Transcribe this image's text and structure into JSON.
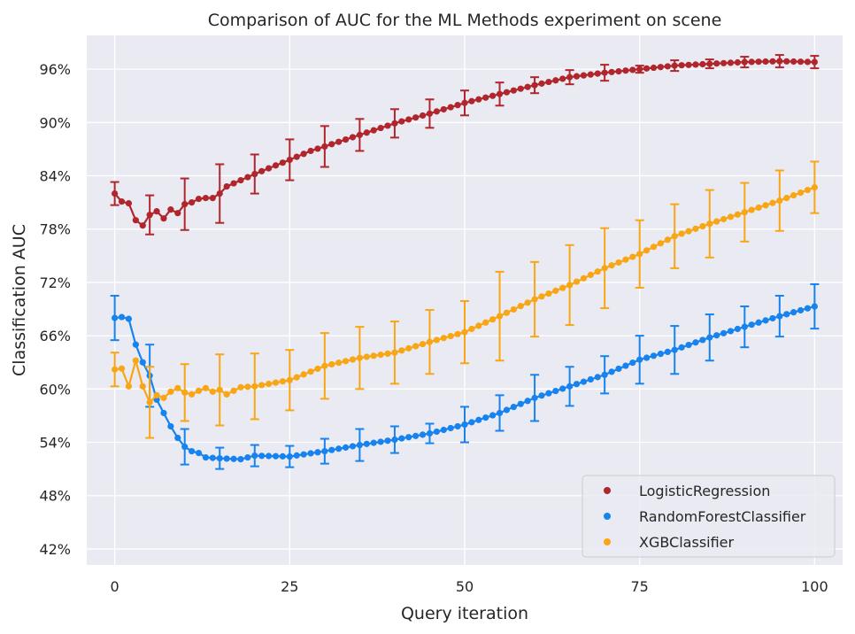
{
  "colors": {
    "background": "#eaeaf2",
    "grid": "#ffffff",
    "LogisticRegression": "#b0262c",
    "RandomForestClassifier": "#1683ef",
    "XGBClassifier": "#f8a615"
  },
  "chart_data": {
    "type": "line",
    "title": "Comparison of AUC for the ML Methods experiment on scene",
    "xlabel": "Query iteration",
    "ylabel": "Classification AUC",
    "xlim": [
      -4,
      104
    ],
    "ylim": [
      40.2,
      99.8
    ],
    "x_ticks": [
      0,
      25,
      50,
      75,
      100
    ],
    "x_tick_labels": [
      "0",
      "25",
      "50",
      "75",
      "100"
    ],
    "y_ticks": [
      42,
      48,
      54,
      60,
      66,
      72,
      78,
      84,
      90,
      96
    ],
    "y_tick_labels": [
      "42%",
      "48%",
      "54%",
      "60%",
      "66%",
      "72%",
      "78%",
      "84%",
      "90%",
      "96%"
    ],
    "grid": true,
    "legend_position": "bottom-right",
    "series": [
      {
        "name": "LogisticRegression",
        "anchors": [
          [
            0,
            82.0
          ],
          [
            1,
            81.1
          ],
          [
            2,
            80.9
          ],
          [
            3,
            79.0
          ],
          [
            4,
            78.4
          ],
          [
            5,
            79.6
          ],
          [
            6,
            80.0
          ],
          [
            7,
            79.2
          ],
          [
            8,
            80.2
          ],
          [
            9,
            79.8
          ],
          [
            10,
            80.8
          ],
          [
            11,
            81.0
          ],
          [
            12,
            81.4
          ],
          [
            13,
            81.5
          ],
          [
            14,
            81.5
          ],
          [
            15,
            82.0
          ],
          [
            16,
            82.8
          ],
          [
            20,
            84.2
          ],
          [
            25,
            85.8
          ],
          [
            28,
            86.8
          ],
          [
            30,
            87.3
          ],
          [
            35,
            88.6
          ],
          [
            40,
            89.9
          ],
          [
            45,
            91.0
          ],
          [
            50,
            92.2
          ],
          [
            55,
            93.2
          ],
          [
            60,
            94.2
          ],
          [
            65,
            95.1
          ],
          [
            70,
            95.6
          ],
          [
            75,
            96.0
          ],
          [
            80,
            96.4
          ],
          [
            85,
            96.6
          ],
          [
            90,
            96.8
          ],
          [
            95,
            96.9
          ],
          [
            100,
            96.8
          ]
        ],
        "error_x": [
          0,
          5,
          10,
          15,
          20,
          25,
          30,
          35,
          40,
          45,
          50,
          55,
          60,
          65,
          70,
          75,
          80,
          85,
          90,
          95,
          100
        ],
        "error_half": [
          1.3,
          2.2,
          2.9,
          3.3,
          2.2,
          2.3,
          2.3,
          1.8,
          1.6,
          1.6,
          1.4,
          1.3,
          0.9,
          0.8,
          0.9,
          0.4,
          0.6,
          0.5,
          0.6,
          0.7,
          0.7
        ]
      },
      {
        "name": "RandomForestClassifier",
        "anchors": [
          [
            0,
            68.0
          ],
          [
            1,
            68.1
          ],
          [
            2,
            67.9
          ],
          [
            3,
            65.0
          ],
          [
            4,
            63.0
          ],
          [
            5,
            61.5
          ],
          [
            6,
            58.8
          ],
          [
            7,
            57.3
          ],
          [
            8,
            55.8
          ],
          [
            9,
            54.5
          ],
          [
            10,
            53.5
          ],
          [
            11,
            53.0
          ],
          [
            12,
            52.8
          ],
          [
            13,
            52.3
          ],
          [
            15,
            52.2
          ],
          [
            18,
            52.1
          ],
          [
            20,
            52.5
          ],
          [
            25,
            52.4
          ],
          [
            30,
            53.0
          ],
          [
            35,
            53.7
          ],
          [
            40,
            54.3
          ],
          [
            45,
            55.0
          ],
          [
            50,
            56.0
          ],
          [
            55,
            57.3
          ],
          [
            60,
            59.0
          ],
          [
            65,
            60.3
          ],
          [
            70,
            61.6
          ],
          [
            75,
            63.3
          ],
          [
            80,
            64.4
          ],
          [
            85,
            65.8
          ],
          [
            90,
            67.0
          ],
          [
            95,
            68.2
          ],
          [
            100,
            69.3
          ]
        ],
        "error_x": [
          0,
          5,
          10,
          15,
          20,
          25,
          30,
          35,
          40,
          45,
          50,
          55,
          60,
          65,
          70,
          75,
          80,
          85,
          90,
          95,
          100
        ],
        "error_half": [
          2.5,
          3.5,
          2.0,
          1.2,
          1.2,
          1.2,
          1.4,
          1.8,
          1.5,
          1.1,
          2.0,
          2.0,
          2.6,
          2.2,
          2.1,
          2.7,
          2.7,
          2.6,
          2.3,
          2.3,
          2.5
        ]
      },
      {
        "name": "XGBClassifier",
        "anchors": [
          [
            0,
            62.2
          ],
          [
            1,
            62.3
          ],
          [
            2,
            60.3
          ],
          [
            3,
            63.2
          ],
          [
            4,
            60.3
          ],
          [
            5,
            58.5
          ],
          [
            6,
            59.3
          ],
          [
            7,
            59.0
          ],
          [
            8,
            59.7
          ],
          [
            9,
            60.1
          ],
          [
            10,
            59.6
          ],
          [
            11,
            59.4
          ],
          [
            12,
            59.8
          ],
          [
            13,
            60.1
          ],
          [
            14,
            59.7
          ],
          [
            15,
            59.9
          ],
          [
            16,
            59.4
          ],
          [
            17,
            59.8
          ],
          [
            18,
            60.2
          ],
          [
            20,
            60.3
          ],
          [
            25,
            61.0
          ],
          [
            30,
            62.6
          ],
          [
            35,
            63.5
          ],
          [
            40,
            64.1
          ],
          [
            45,
            65.3
          ],
          [
            50,
            66.4
          ],
          [
            55,
            68.2
          ],
          [
            60,
            70.1
          ],
          [
            65,
            71.7
          ],
          [
            70,
            73.6
          ],
          [
            75,
            75.2
          ],
          [
            80,
            77.2
          ],
          [
            85,
            78.6
          ],
          [
            90,
            79.9
          ],
          [
            95,
            81.2
          ],
          [
            100,
            82.7
          ]
        ],
        "error_x": [
          0,
          5,
          10,
          15,
          20,
          25,
          30,
          35,
          40,
          45,
          50,
          55,
          60,
          65,
          70,
          75,
          80,
          85,
          90,
          95,
          100
        ],
        "error_half": [
          1.9,
          4.0,
          3.2,
          4.0,
          3.7,
          3.4,
          3.7,
          3.5,
          3.5,
          3.6,
          3.5,
          5.0,
          4.2,
          4.5,
          4.5,
          3.8,
          3.6,
          3.8,
          3.3,
          3.4,
          2.9
        ]
      }
    ]
  }
}
